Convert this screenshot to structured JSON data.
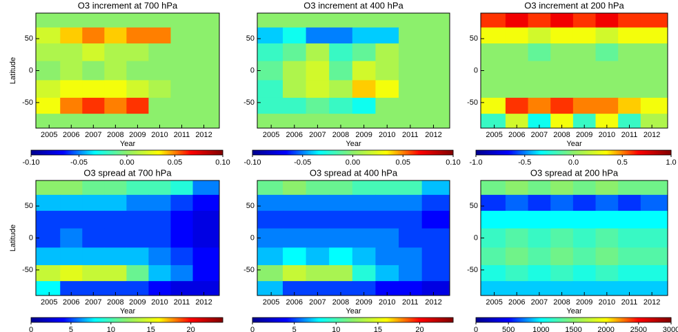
{
  "chart_data": [
    {
      "type": "heatmap",
      "title": "O3 increment at 700 hPa",
      "xlabel": "Year",
      "ylabel": "Latitude",
      "x": [
        2005,
        2006,
        2007,
        2008,
        2009,
        2010,
        2011,
        2012
      ],
      "y": [
        80,
        55,
        30,
        0,
        -30,
        -55,
        -80
      ],
      "xlim": [
        2004.4,
        2012.7
      ],
      "ylim": [
        -90,
        90
      ],
      "xticks": [
        2005,
        2006,
        2007,
        2008,
        2009,
        2010,
        2011,
        2012
      ],
      "yticks": [
        50,
        0,
        -50
      ],
      "z": [
        [
          0,
          0,
          0,
          0,
          0,
          0,
          0,
          0
        ],
        [
          0.02,
          0.04,
          0.05,
          0.04,
          0.05,
          0.05,
          0,
          0
        ],
        [
          0.01,
          0.01,
          0.02,
          0.01,
          0.01,
          0,
          0,
          0
        ],
        [
          0,
          0.01,
          0,
          0.01,
          0,
          0,
          0,
          0
        ],
        [
          0.02,
          0.03,
          0.03,
          0.03,
          0.02,
          0.01,
          0,
          0
        ],
        [
          0.03,
          0.05,
          0.06,
          0.05,
          0.06,
          0,
          0,
          0
        ],
        [
          0,
          0,
          0,
          0,
          0,
          0,
          0,
          0
        ]
      ],
      "clim": [
        -0.1,
        0.1
      ],
      "cticks": [
        {
          "value": -0.1,
          "label": "-0.10"
        },
        -0.05,
        {
          "value": 0,
          "label": "0.00"
        },
        0.05,
        {
          "value": 0.1,
          "label": "0.10"
        }
      ],
      "colors": [
        "#00008f",
        "#0000ff",
        "#00ffff",
        "#8cf06c",
        "#ffff00",
        "#ff0000",
        "#800000"
      ]
    },
    {
      "type": "heatmap",
      "title": "O3 increment at 400 hPa",
      "xlabel": "Year",
      "x": [
        2005,
        2006,
        2007,
        2008,
        2009,
        2010,
        2011,
        2012
      ],
      "y": [
        80,
        55,
        30,
        0,
        -30,
        -55,
        -80
      ],
      "xlim": [
        2004.4,
        2012.7
      ],
      "ylim": [
        -90,
        90
      ],
      "xticks": [
        2005,
        2006,
        2007,
        2008,
        2009,
        2010,
        2011,
        2012
      ],
      "yticks": [
        50,
        0,
        -50
      ],
      "z": [
        [
          0,
          0,
          0,
          0,
          0,
          0,
          0,
          0
        ],
        [
          -0.04,
          -0.03,
          -0.05,
          -0.05,
          -0.04,
          -0.04,
          0,
          0
        ],
        [
          -0.02,
          -0.01,
          0.01,
          -0.02,
          -0.01,
          0.01,
          0,
          0
        ],
        [
          -0.01,
          0.01,
          0.02,
          -0.01,
          0.02,
          0.01,
          0,
          0
        ],
        [
          -0.02,
          0.01,
          0.02,
          0.01,
          0.04,
          0.03,
          0,
          0
        ],
        [
          -0.02,
          -0.02,
          -0.01,
          -0.02,
          -0.03,
          0,
          0,
          0
        ],
        [
          0,
          0,
          0,
          0,
          0,
          0,
          0,
          0
        ]
      ],
      "clim": [
        -0.1,
        0.1
      ],
      "cticks": [
        {
          "value": -0.1,
          "label": "-0.10"
        },
        -0.05,
        {
          "value": 0,
          "label": "0.00"
        },
        0.05,
        {
          "value": 0.1,
          "label": "0.10"
        }
      ],
      "colors": [
        "#00008f",
        "#0000ff",
        "#00ffff",
        "#8cf06c",
        "#ffff00",
        "#ff0000",
        "#800000"
      ]
    },
    {
      "type": "heatmap",
      "title": "O3 increment at 200 hPa",
      "xlabel": "Year",
      "x": [
        2005,
        2006,
        2007,
        2008,
        2009,
        2010,
        2011,
        2012
      ],
      "y": [
        80,
        55,
        30,
        0,
        -30,
        -55,
        -80
      ],
      "xlim": [
        2004.4,
        2012.7
      ],
      "ylim": [
        -90,
        90
      ],
      "xticks": [
        2005,
        2006,
        2007,
        2008,
        2009,
        2010,
        2011,
        2012
      ],
      "yticks": [
        50,
        0,
        -50
      ],
      "z": [
        [
          0.6,
          0.7,
          0.6,
          0.7,
          0.6,
          0.7,
          0.6,
          0.6
        ],
        [
          0.3,
          0.3,
          0.2,
          0.3,
          0.3,
          0.2,
          0.3,
          0.3
        ],
        [
          0,
          0,
          -0.1,
          0,
          0,
          -0.1,
          0,
          0
        ],
        [
          0,
          0,
          0,
          0,
          0,
          0,
          0,
          0
        ],
        [
          0,
          0,
          0,
          0,
          0,
          0,
          0,
          0
        ],
        [
          0.3,
          0.6,
          0.5,
          0.6,
          0.5,
          0.5,
          0.4,
          0.3
        ],
        [
          -0.2,
          0.2,
          -0.3,
          0.3,
          -0.2,
          0.3,
          -0.2,
          0.1
        ]
      ],
      "clim": [
        -1,
        1
      ],
      "cticks": [
        {
          "value": -1,
          "label": "-1.0"
        },
        -0.5,
        {
          "value": 0,
          "label": "0.0"
        },
        0.5,
        {
          "value": 1,
          "label": "1.0"
        }
      ],
      "colors": [
        "#00008f",
        "#0000ff",
        "#00ffff",
        "#8cf06c",
        "#ffff00",
        "#ff0000",
        "#800000"
      ]
    },
    {
      "type": "heatmap",
      "title": "O3 spread at 700 hPa",
      "xlabel": "Year",
      "ylabel": "Latitude",
      "x": [
        2005,
        2006,
        2007,
        2008,
        2009,
        2010,
        2011,
        2012
      ],
      "y": [
        80,
        55,
        30,
        0,
        -30,
        -55,
        -80
      ],
      "xlim": [
        2004.4,
        2012.7
      ],
      "ylim": [
        -90,
        90
      ],
      "xticks": [
        2005,
        2006,
        2007,
        2008,
        2009,
        2010,
        2011,
        2012
      ],
      "yticks": [
        50,
        0,
        -50
      ],
      "z": [
        [
          12,
          12,
          11,
          11,
          10,
          10,
          9,
          6
        ],
        [
          7,
          7,
          7,
          7,
          6,
          6,
          5,
          4
        ],
        [
          5,
          5,
          5,
          5,
          5,
          5,
          4,
          3
        ],
        [
          5,
          6,
          5,
          5,
          5,
          5,
          4,
          3
        ],
        [
          7,
          7,
          7,
          7,
          7,
          6,
          5,
          4
        ],
        [
          14,
          15,
          14,
          14,
          11,
          7,
          6,
          4
        ],
        [
          8,
          5,
          5,
          5,
          5,
          4,
          3,
          3
        ]
      ],
      "clim": [
        0,
        24
      ],
      "cticks": [
        0,
        5,
        10,
        15,
        20
      ],
      "colors": [
        "#00008f",
        "#0000ff",
        "#00ffff",
        "#8cf06c",
        "#ffff00",
        "#ff0000",
        "#800000"
      ]
    },
    {
      "type": "heatmap",
      "title": "O3 spread at 400 hPa",
      "xlabel": "Year",
      "x": [
        2005,
        2006,
        2007,
        2008,
        2009,
        2010,
        2011,
        2012
      ],
      "y": [
        80,
        55,
        30,
        0,
        -30,
        -55,
        -80
      ],
      "xlim": [
        2004.4,
        2012.7
      ],
      "ylim": [
        -90,
        90
      ],
      "xticks": [
        2005,
        2006,
        2007,
        2008,
        2009,
        2010,
        2011,
        2012
      ],
      "yticks": [
        50,
        0,
        -50
      ],
      "z": [
        [
          11,
          12,
          11,
          11,
          10,
          10,
          10,
          7
        ],
        [
          6,
          6,
          6,
          6,
          6,
          6,
          6,
          5
        ],
        [
          5,
          5,
          5,
          5,
          5,
          5,
          5,
          4
        ],
        [
          6,
          6,
          6,
          6,
          6,
          6,
          5,
          5
        ],
        [
          7,
          8,
          7,
          8,
          7,
          6,
          6,
          5
        ],
        [
          12,
          14,
          13,
          13,
          9,
          7,
          6,
          5
        ],
        [
          7,
          5,
          5,
          5,
          5,
          4,
          4,
          3
        ]
      ],
      "clim": [
        0,
        24
      ],
      "cticks": [
        0,
        5,
        10,
        15,
        20
      ],
      "colors": [
        "#00008f",
        "#0000ff",
        "#00ffff",
        "#8cf06c",
        "#ffff00",
        "#ff0000",
        "#800000"
      ]
    },
    {
      "type": "heatmap",
      "title": "O3 spread at 200 hPa",
      "xlabel": "Year",
      "x": [
        2005,
        2006,
        2007,
        2008,
        2009,
        2010,
        2011,
        2012
      ],
      "y": [
        80,
        55,
        30,
        0,
        -30,
        -55,
        -80
      ],
      "xlim": [
        2004.4,
        2012.7
      ],
      "ylim": [
        -90,
        90
      ],
      "xticks": [
        2005,
        2006,
        2007,
        2008,
        2009,
        2010,
        2011,
        2012
      ],
      "yticks": [
        50,
        0,
        -50
      ],
      "z": [
        [
          1400,
          1500,
          1400,
          1500,
          1400,
          1500,
          1400,
          1400
        ],
        [
          600,
          700,
          600,
          700,
          600,
          700,
          600,
          700
        ],
        [
          1000,
          1000,
          1000,
          1000,
          1000,
          1000,
          1000,
          1000
        ],
        [
          1200,
          1300,
          1200,
          1300,
          1200,
          1300,
          1200,
          1200
        ],
        [
          1300,
          1400,
          1300,
          1400,
          1300,
          1400,
          1300,
          1300
        ],
        [
          1100,
          1200,
          1100,
          1200,
          1100,
          1200,
          1100,
          1100
        ],
        [
          900,
          900,
          900,
          900,
          900,
          900,
          900,
          900
        ]
      ],
      "clim": [
        0,
        3000
      ],
      "cticks": [
        0,
        500,
        1000,
        1500,
        2000,
        2500,
        3000
      ],
      "colors": [
        "#00008f",
        "#0000ff",
        "#00ffff",
        "#8cf06c",
        "#ffff00",
        "#ff0000",
        "#800000"
      ]
    }
  ]
}
